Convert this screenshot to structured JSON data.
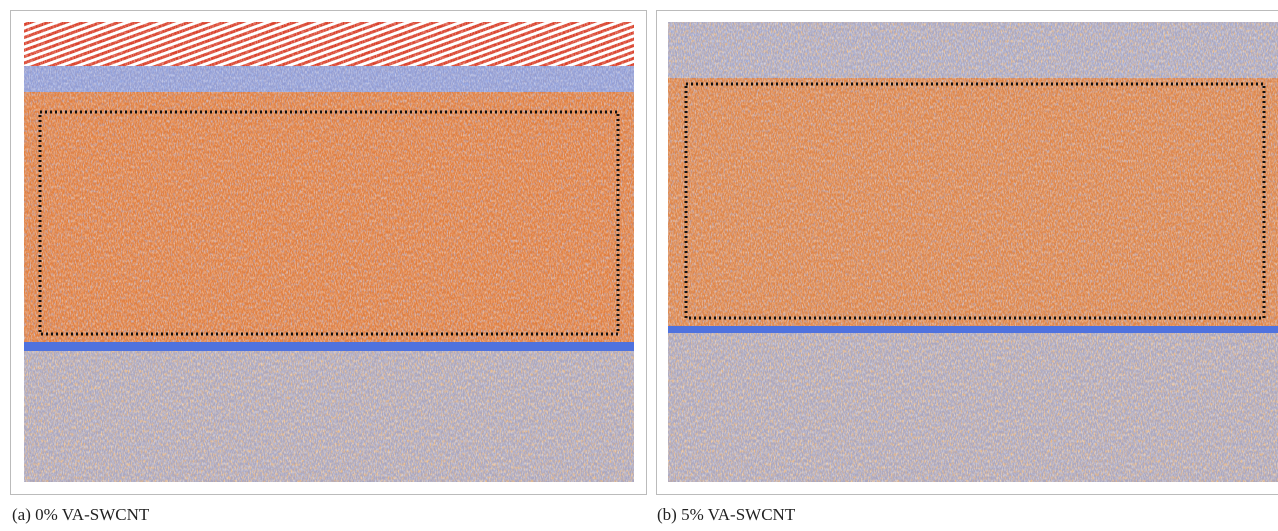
{
  "panels": [
    {
      "caption": "(a) 0% VA-SWCNT"
    },
    {
      "caption": "(b) 5% VA-SWCNT"
    }
  ]
}
